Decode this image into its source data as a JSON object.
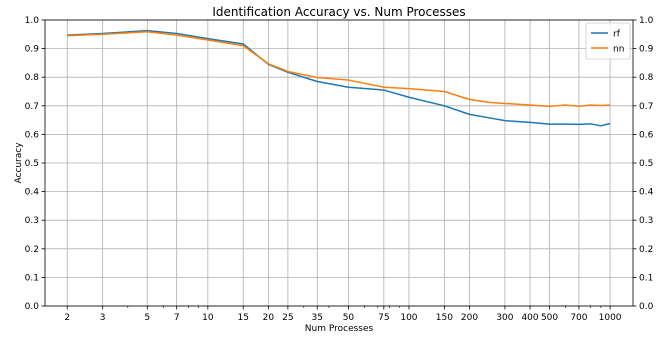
{
  "chart_data": {
    "type": "line",
    "title": "Identification Accuracy vs. Num Processes",
    "xlabel": "Num Processes",
    "ylabel": "Accuracy",
    "x_scale": "log",
    "xlim": [
      1.55,
      1300
    ],
    "ylim": [
      0.0,
      1.0
    ],
    "x_ticks": [
      2,
      3,
      5,
      7,
      10,
      15,
      20,
      25,
      35,
      50,
      75,
      100,
      150,
      200,
      300,
      400,
      500,
      700,
      1000
    ],
    "y_ticks": [
      0.0,
      0.1,
      0.2,
      0.3,
      0.4,
      0.5,
      0.6,
      0.7,
      0.8,
      0.9,
      1.0
    ],
    "y_tick_labels": [
      "0.0",
      "0.1",
      "0.2",
      "0.3",
      "0.4",
      "0.5",
      "0.6",
      "0.7",
      "0.8",
      "0.9",
      "1.0"
    ],
    "grid": true,
    "legend_position": "top-right",
    "x": [
      2,
      3,
      5,
      7,
      10,
      15,
      20,
      25,
      35,
      50,
      75,
      100,
      150,
      200,
      250,
      300,
      400,
      500,
      600,
      700,
      800,
      900,
      1000
    ],
    "series": [
      {
        "name": "rf",
        "color": "#1f77b4",
        "values": [
          0.947,
          0.953,
          0.963,
          0.953,
          0.935,
          0.916,
          0.845,
          0.817,
          0.785,
          0.765,
          0.755,
          0.73,
          0.7,
          0.67,
          0.658,
          0.648,
          0.642,
          0.636,
          0.636,
          0.635,
          0.637,
          0.63,
          0.638
        ]
      },
      {
        "name": "nn",
        "color": "#ff7f0e",
        "values": [
          0.945,
          0.95,
          0.959,
          0.947,
          0.93,
          0.91,
          0.847,
          0.82,
          0.799,
          0.79,
          0.765,
          0.76,
          0.75,
          0.722,
          0.712,
          0.708,
          0.703,
          0.698,
          0.703,
          0.698,
          0.703,
          0.701,
          0.703
        ]
      }
    ]
  }
}
